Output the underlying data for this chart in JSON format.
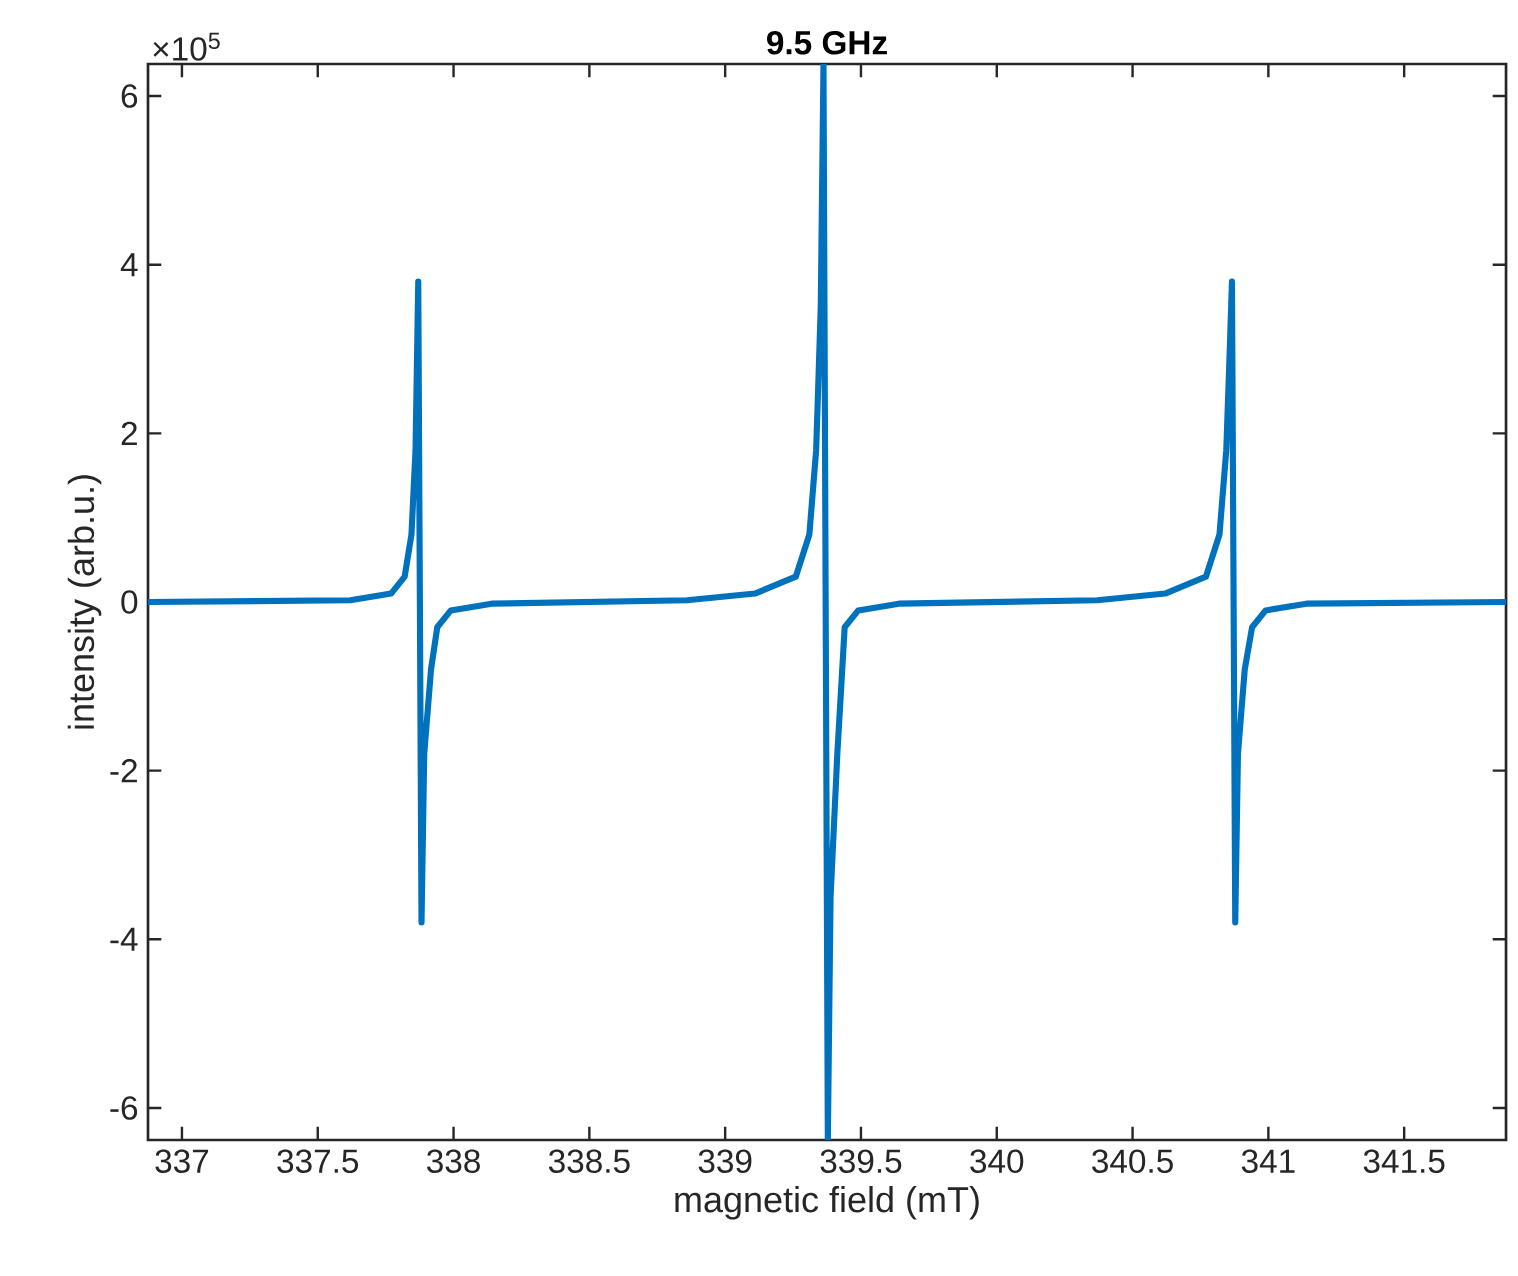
{
  "chart_data": {
    "type": "line",
    "title": "9.5 GHz",
    "xlabel": "magnetic field (mT)",
    "ylabel": "intensity (arb.u.)",
    "annotations": [
      "×10$^{5}$"
    ],
    "xlim": [
      336.875,
      341.875
    ],
    "ylim": [
      -6.38,
      6.38
    ],
    "xticks": [
      337,
      337.5,
      338,
      338.5,
      339,
      339.5,
      340,
      340.5,
      341,
      341.5
    ],
    "yticks": [
      -6,
      -4,
      -2,
      0,
      2,
      4,
      6
    ],
    "grid": false,
    "marker": "none",
    "line_style": "solid",
    "series": [
      {
        "color": "#0072bd",
        "x": [
          336.875,
          337.62,
          337.77,
          337.82,
          337.845,
          337.86,
          337.87,
          337.882,
          337.892,
          337.917,
          337.94,
          337.99,
          338.14,
          338.86,
          339.11,
          339.26,
          339.31,
          339.335,
          339.352,
          339.362,
          339.378,
          339.388,
          339.413,
          339.44,
          339.49,
          339.64,
          340.37,
          340.62,
          340.77,
          340.82,
          340.845,
          340.858,
          340.866,
          340.878,
          340.888,
          340.913,
          340.94,
          340.99,
          341.14,
          341.875
        ],
        "values": [
          0,
          0.02,
          0.1,
          0.3,
          0.8,
          1.8,
          3.8,
          -3.8,
          -1.8,
          -0.8,
          -0.3,
          -0.1,
          -0.02,
          0.02,
          0.1,
          0.3,
          0.8,
          1.8,
          3.5,
          6.38,
          -6.38,
          -3.5,
          -1.8,
          -0.3,
          -0.1,
          -0.02,
          0.02,
          0.1,
          0.3,
          0.8,
          1.8,
          3.0,
          3.8,
          -3.8,
          -1.8,
          -0.8,
          -0.3,
          -0.1,
          -0.02,
          0
        ]
      }
    ]
  }
}
